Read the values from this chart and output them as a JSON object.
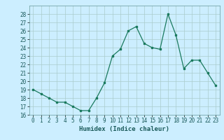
{
  "title": "",
  "xlabel": "Humidex (Indice chaleur)",
  "x": [
    0,
    1,
    2,
    3,
    4,
    5,
    6,
    7,
    8,
    9,
    10,
    11,
    12,
    13,
    14,
    15,
    16,
    17,
    18,
    19,
    20,
    21,
    22,
    23
  ],
  "y": [
    19,
    18.5,
    18,
    17.5,
    17.5,
    17,
    16.5,
    16.5,
    18,
    19.8,
    23,
    23.8,
    26,
    26.5,
    24.5,
    24,
    23.8,
    28,
    25.5,
    21.5,
    22.5,
    22.5,
    21,
    19.5
  ],
  "line_color": "#1a7a5e",
  "marker": "s",
  "marker_size": 2.0,
  "line_width": 0.9,
  "bg_color": "#cceeff",
  "grid_color": "#aacccc",
  "tick_label_color": "#1a5a5a",
  "ylim": [
    16,
    29
  ],
  "yticks": [
    16,
    17,
    18,
    19,
    20,
    21,
    22,
    23,
    24,
    25,
    26,
    27,
    28
  ],
  "xticks": [
    0,
    1,
    2,
    3,
    4,
    5,
    6,
    7,
    8,
    9,
    10,
    11,
    12,
    13,
    14,
    15,
    16,
    17,
    18,
    19,
    20,
    21,
    22,
    23
  ],
  "xtick_labels": [
    "0",
    "1",
    "2",
    "3",
    "4",
    "5",
    "6",
    "7",
    "8",
    "9",
    "10",
    "11",
    "12",
    "13",
    "14",
    "15",
    "16",
    "17",
    "18",
    "19",
    "20",
    "21",
    "22",
    "23"
  ],
  "xlabel_fontsize": 6.5,
  "tick_fontsize": 5.5
}
